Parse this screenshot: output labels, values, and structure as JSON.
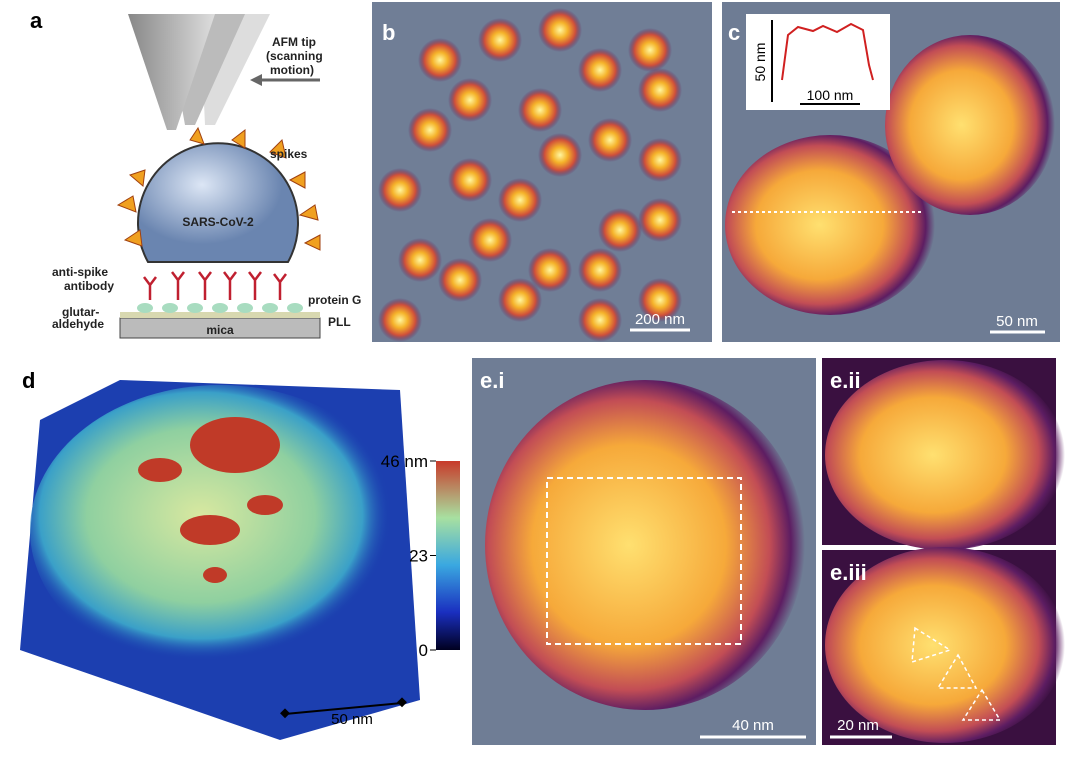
{
  "panels": {
    "a": {
      "label": "a",
      "tip": "AFM tip",
      "tip_note": "(scanning",
      "tip_note2": "motion)",
      "spikes": "spikes",
      "virus": "SARS-CoV-2",
      "antibody": "anti-spike",
      "antibody2": "antibody",
      "glutar": "glutar-",
      "glutar2": "aldehyde",
      "protein": "protein G",
      "pll": "PLL",
      "mica": "mica"
    },
    "b": {
      "label": "b",
      "scale": "200 nm"
    },
    "c": {
      "label": "c",
      "scale": "50 nm",
      "inset_y": "50 nm",
      "inset_x": "100 nm"
    },
    "d": {
      "label": "d",
      "scale": "50 nm",
      "colorbar": {
        "range": [
          0,
          46
        ],
        "ticks": [
          {
            "value": 46,
            "label": "46 nm"
          },
          23,
          0
        ]
      }
    },
    "ei": {
      "label": "e.i",
      "scale": "40 nm"
    },
    "eii": {
      "label": "e.ii"
    },
    "eiii": {
      "label": "e.iii",
      "scale": "20 nm"
    }
  }
}
